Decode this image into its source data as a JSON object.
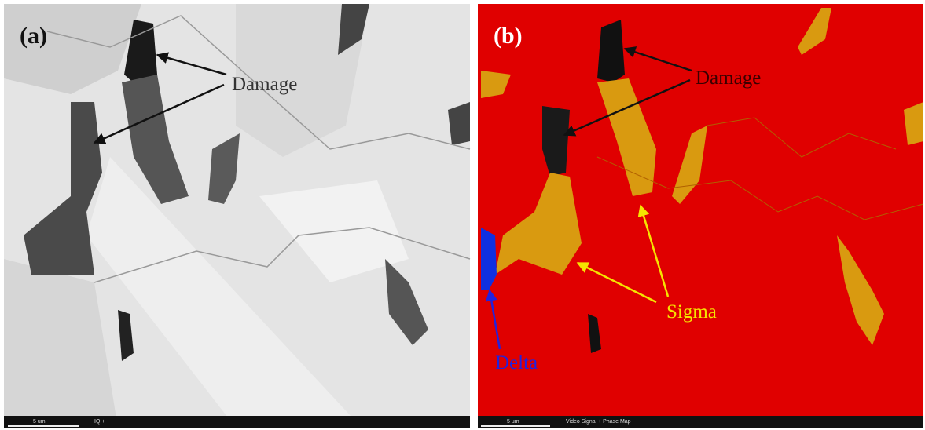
{
  "panels": [
    {
      "label": "(a)",
      "annotations": [
        "Damage"
      ],
      "scale_bar": "5 um",
      "footer": "IQ +"
    },
    {
      "label": "(b)",
      "annotations": [
        "Damage",
        "Sigma",
        "Delta"
      ],
      "scale_bar": "5 um",
      "footer": "Video Signal + Phase Map"
    }
  ]
}
